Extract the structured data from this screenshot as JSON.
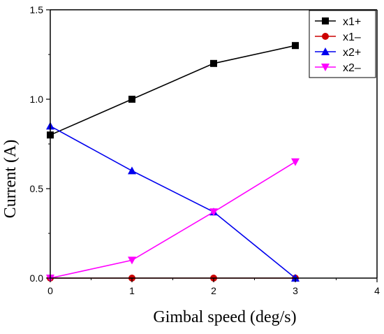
{
  "chart_data": {
    "type": "line",
    "title": "",
    "xlabel": "Gimbal speed (deg/s)",
    "ylabel": "Current (A)",
    "xlim": [
      0,
      4
    ],
    "ylim": [
      0,
      1.5
    ],
    "x_ticks": [
      0,
      1,
      2,
      3,
      4
    ],
    "x_tick_labels": [
      "0",
      "1",
      "2",
      "3",
      "4"
    ],
    "y_ticks": [
      0,
      0.5,
      1.0,
      1.5
    ],
    "y_tick_labels": [
      "0.0",
      "0.5",
      "1.0",
      "1.5"
    ],
    "grid": false,
    "legend_position": "top-right",
    "x": [
      0,
      1,
      2,
      3
    ],
    "series": [
      {
        "name": "x1+",
        "values": [
          0.8,
          1.0,
          1.2,
          1.3
        ],
        "color": "#000000",
        "marker": "square"
      },
      {
        "name": "x1–",
        "values": [
          0,
          0,
          0,
          0
        ],
        "color": "#cc0000",
        "marker": "circle"
      },
      {
        "name": "x2+",
        "values": [
          0.85,
          0.6,
          0.37,
          0
        ],
        "color": "#0000ee",
        "marker": "triangle-up"
      },
      {
        "name": "x2–",
        "values": [
          0,
          0.1,
          0.37,
          0.65
        ],
        "color": "#ff00ff",
        "marker": "triangle-down"
      }
    ]
  }
}
